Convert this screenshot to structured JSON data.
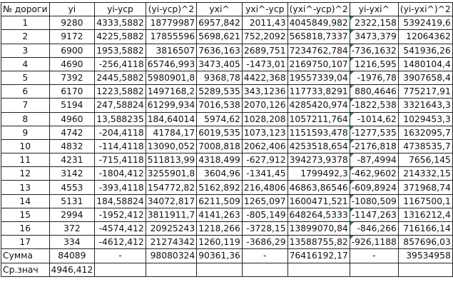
{
  "headers": [
    "№ дороги",
    "yi",
    "yi-yср",
    "(yi-yср)^2",
    "yxi^",
    "yxi^-yср",
    "(yxi^-yср)^2",
    "yi-yxi^",
    "(yi-yxi^)^2"
  ],
  "rows": [
    [
      "1",
      "9280",
      "4333,5882",
      "18779987",
      "6957,842",
      "2011,43",
      "4045849,982",
      "2322,158",
      "5392419,6"
    ],
    [
      "2",
      "9172",
      "4225,5882",
      "17855596",
      "5698,621",
      "752,2092",
      "565818,7337",
      "3473,379",
      "12064362"
    ],
    [
      "3",
      "6900",
      "1953,5882",
      "3816507",
      "7636,163",
      "2689,751",
      "7234762,784",
      "-736,1632",
      "541936,26"
    ],
    [
      "4",
      "4690",
      "-256,4118",
      "65746,993",
      "3473,405",
      "-1473,01",
      "2169750,107",
      "1216,595",
      "1480104,4"
    ],
    [
      "5",
      "7392",
      "2445,5882",
      "5980901,8",
      "9368,78",
      "4422,368",
      "19557339,04",
      "-1976,78",
      "3907658,4"
    ],
    [
      "6",
      "6170",
      "1223,5882",
      "1497168,2",
      "5289,535",
      "343,1236",
      "117733,8291",
      "880,4646",
      "775217,91"
    ],
    [
      "7",
      "5194",
      "247,58824",
      "61299,934",
      "7016,538",
      "2070,126",
      "4285420,974",
      "-1822,538",
      "3321643,3"
    ],
    [
      "8",
      "4960",
      "13,588235",
      "184,64014",
      "5974,62",
      "1028,208",
      "1057211,764",
      "-1014,62",
      "1029453,3"
    ],
    [
      "9",
      "4742",
      "-204,4118",
      "41784,17",
      "6019,535",
      "1073,123",
      "1151593,478",
      "-1277,535",
      "1632095,7"
    ],
    [
      "10",
      "4832",
      "-114,4118",
      "13090,052",
      "7008,818",
      "2062,406",
      "4253518,654",
      "-2176,818",
      "4738535,7"
    ],
    [
      "11",
      "4231",
      "-715,4118",
      "511813,99",
      "4318,499",
      "-627,912",
      "394273,9378",
      "-87,4994",
      "7656,145"
    ],
    [
      "12",
      "3142",
      "-1804,412",
      "3255901,8",
      "3604,96",
      "-1341,45",
      "1799492,3",
      "-462,9602",
      "214332,15"
    ],
    [
      "13",
      "4553",
      "-393,4118",
      "154772,82",
      "5162,892",
      "216,4806",
      "46863,86546",
      "-609,8924",
      "371968,74"
    ],
    [
      "14",
      "5131",
      "184,58824",
      "34072,817",
      "6211,509",
      "1265,097",
      "1600471,521",
      "-1080,509",
      "1167500,1"
    ],
    [
      "15",
      "2994",
      "-1952,412",
      "3811911,7",
      "4141,263",
      "-805,149",
      "648264,5333",
      "-1147,263",
      "1316212,4"
    ],
    [
      "16",
      "372",
      "-4574,412",
      "20925243",
      "1218,266",
      "-3728,15",
      "13899070,84",
      "-846,266",
      "716166,14"
    ],
    [
      "17",
      "334",
      "-4612,412",
      "21274342",
      "1260,119",
      "-3686,29",
      "13588755,82",
      "-926,1188",
      "857696,03"
    ]
  ],
  "sum_row": [
    "Сумма",
    "84089",
    "-",
    "98080324",
    "90361,36",
    "-",
    "76416192,17",
    "-",
    "39534958"
  ],
  "mean_row": [
    "Ср.знач",
    "4946,412",
    "",
    "",
    "",
    "",
    "",
    "",
    ""
  ],
  "colors": {
    "border": "#222222",
    "error_flag": "#1e8a3a"
  }
}
